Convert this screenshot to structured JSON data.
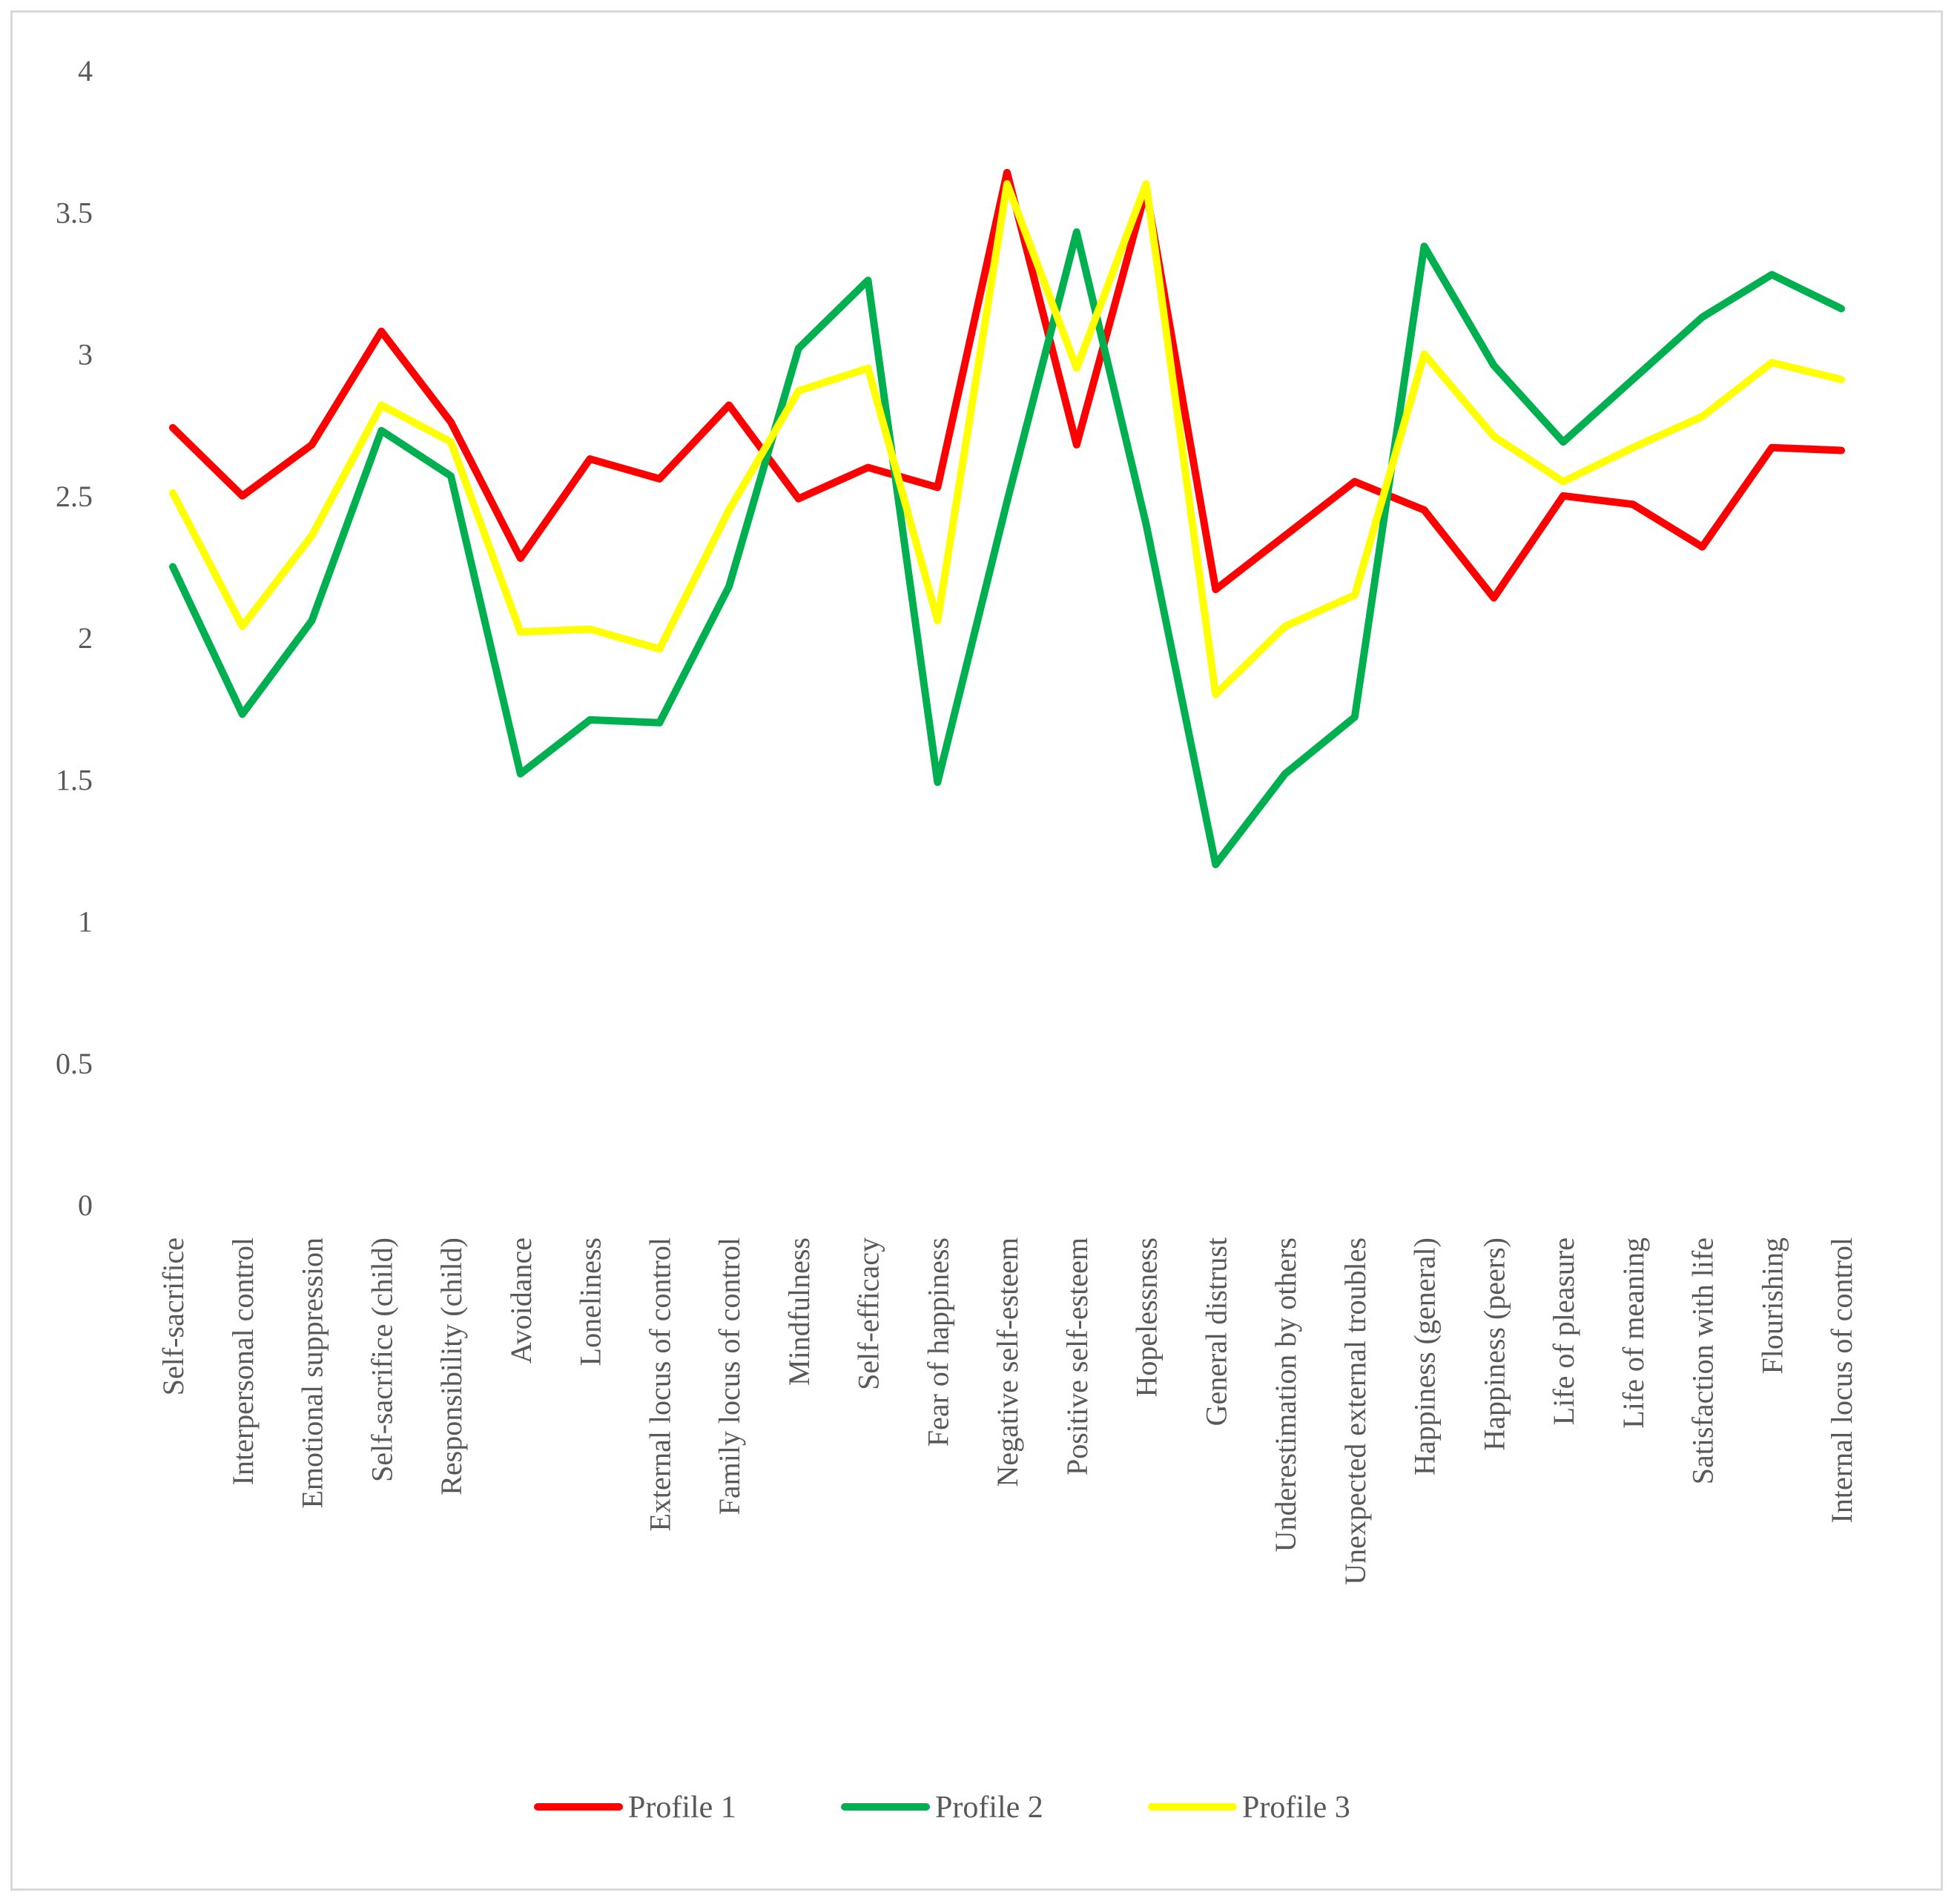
{
  "chart_data": {
    "type": "line",
    "title": "",
    "xlabel": "",
    "ylabel": "",
    "ylim": [
      0,
      4
    ],
    "yticks": [
      "0",
      "0.5",
      "1",
      "1.5",
      "2",
      "2.5",
      "3",
      "3.5",
      "4"
    ],
    "grid": false,
    "legend_position": "bottom",
    "categories": [
      "Self-sacrifice",
      "Interpersonal control",
      "Emotional suppression",
      "Self-sacrifice (child)",
      "Responsibility (child)",
      "Avoidance",
      "Loneliness",
      "External locus of control",
      "Family locus of control",
      "Mindfulness",
      "Self-efficacy",
      "Fear of happiness",
      "Negative self-esteem",
      "Positive self-esteem",
      "Hopelessness",
      "General distrust",
      "Underestimation by others",
      "Unexpected external troubles",
      "Happiness (general)",
      "Happiness (peers)",
      "Life of pleasure",
      "Life of meaning",
      "Satisfaction with life",
      "Flourishing",
      "Internal locus of control"
    ],
    "series": [
      {
        "name": "Profile 1",
        "color": "#ff0000",
        "values": [
          2.74,
          2.5,
          2.68,
          3.08,
          2.76,
          2.28,
          2.63,
          2.56,
          2.82,
          2.49,
          2.6,
          2.53,
          3.64,
          2.68,
          3.58,
          2.17,
          2.36,
          2.55,
          2.45,
          2.14,
          2.5,
          2.47,
          2.32,
          2.67,
          2.66
        ]
      },
      {
        "name": "Profile 2",
        "color": "#00b050",
        "values": [
          2.25,
          1.73,
          2.06,
          2.73,
          2.57,
          1.52,
          1.71,
          1.7,
          2.18,
          3.02,
          3.26,
          1.49,
          2.48,
          3.43,
          2.4,
          1.2,
          1.52,
          1.72,
          3.38,
          2.96,
          2.69,
          2.91,
          3.13,
          3.28,
          3.16
        ]
      },
      {
        "name": "Profile 3",
        "color": "#ffff00",
        "values": [
          2.51,
          2.04,
          2.36,
          2.82,
          2.69,
          2.02,
          2.03,
          1.96,
          2.45,
          2.87,
          2.95,
          2.06,
          3.6,
          2.95,
          3.6,
          1.8,
          2.04,
          2.15,
          3.0,
          2.71,
          2.55,
          2.67,
          2.78,
          2.97,
          2.91
        ]
      }
    ]
  }
}
